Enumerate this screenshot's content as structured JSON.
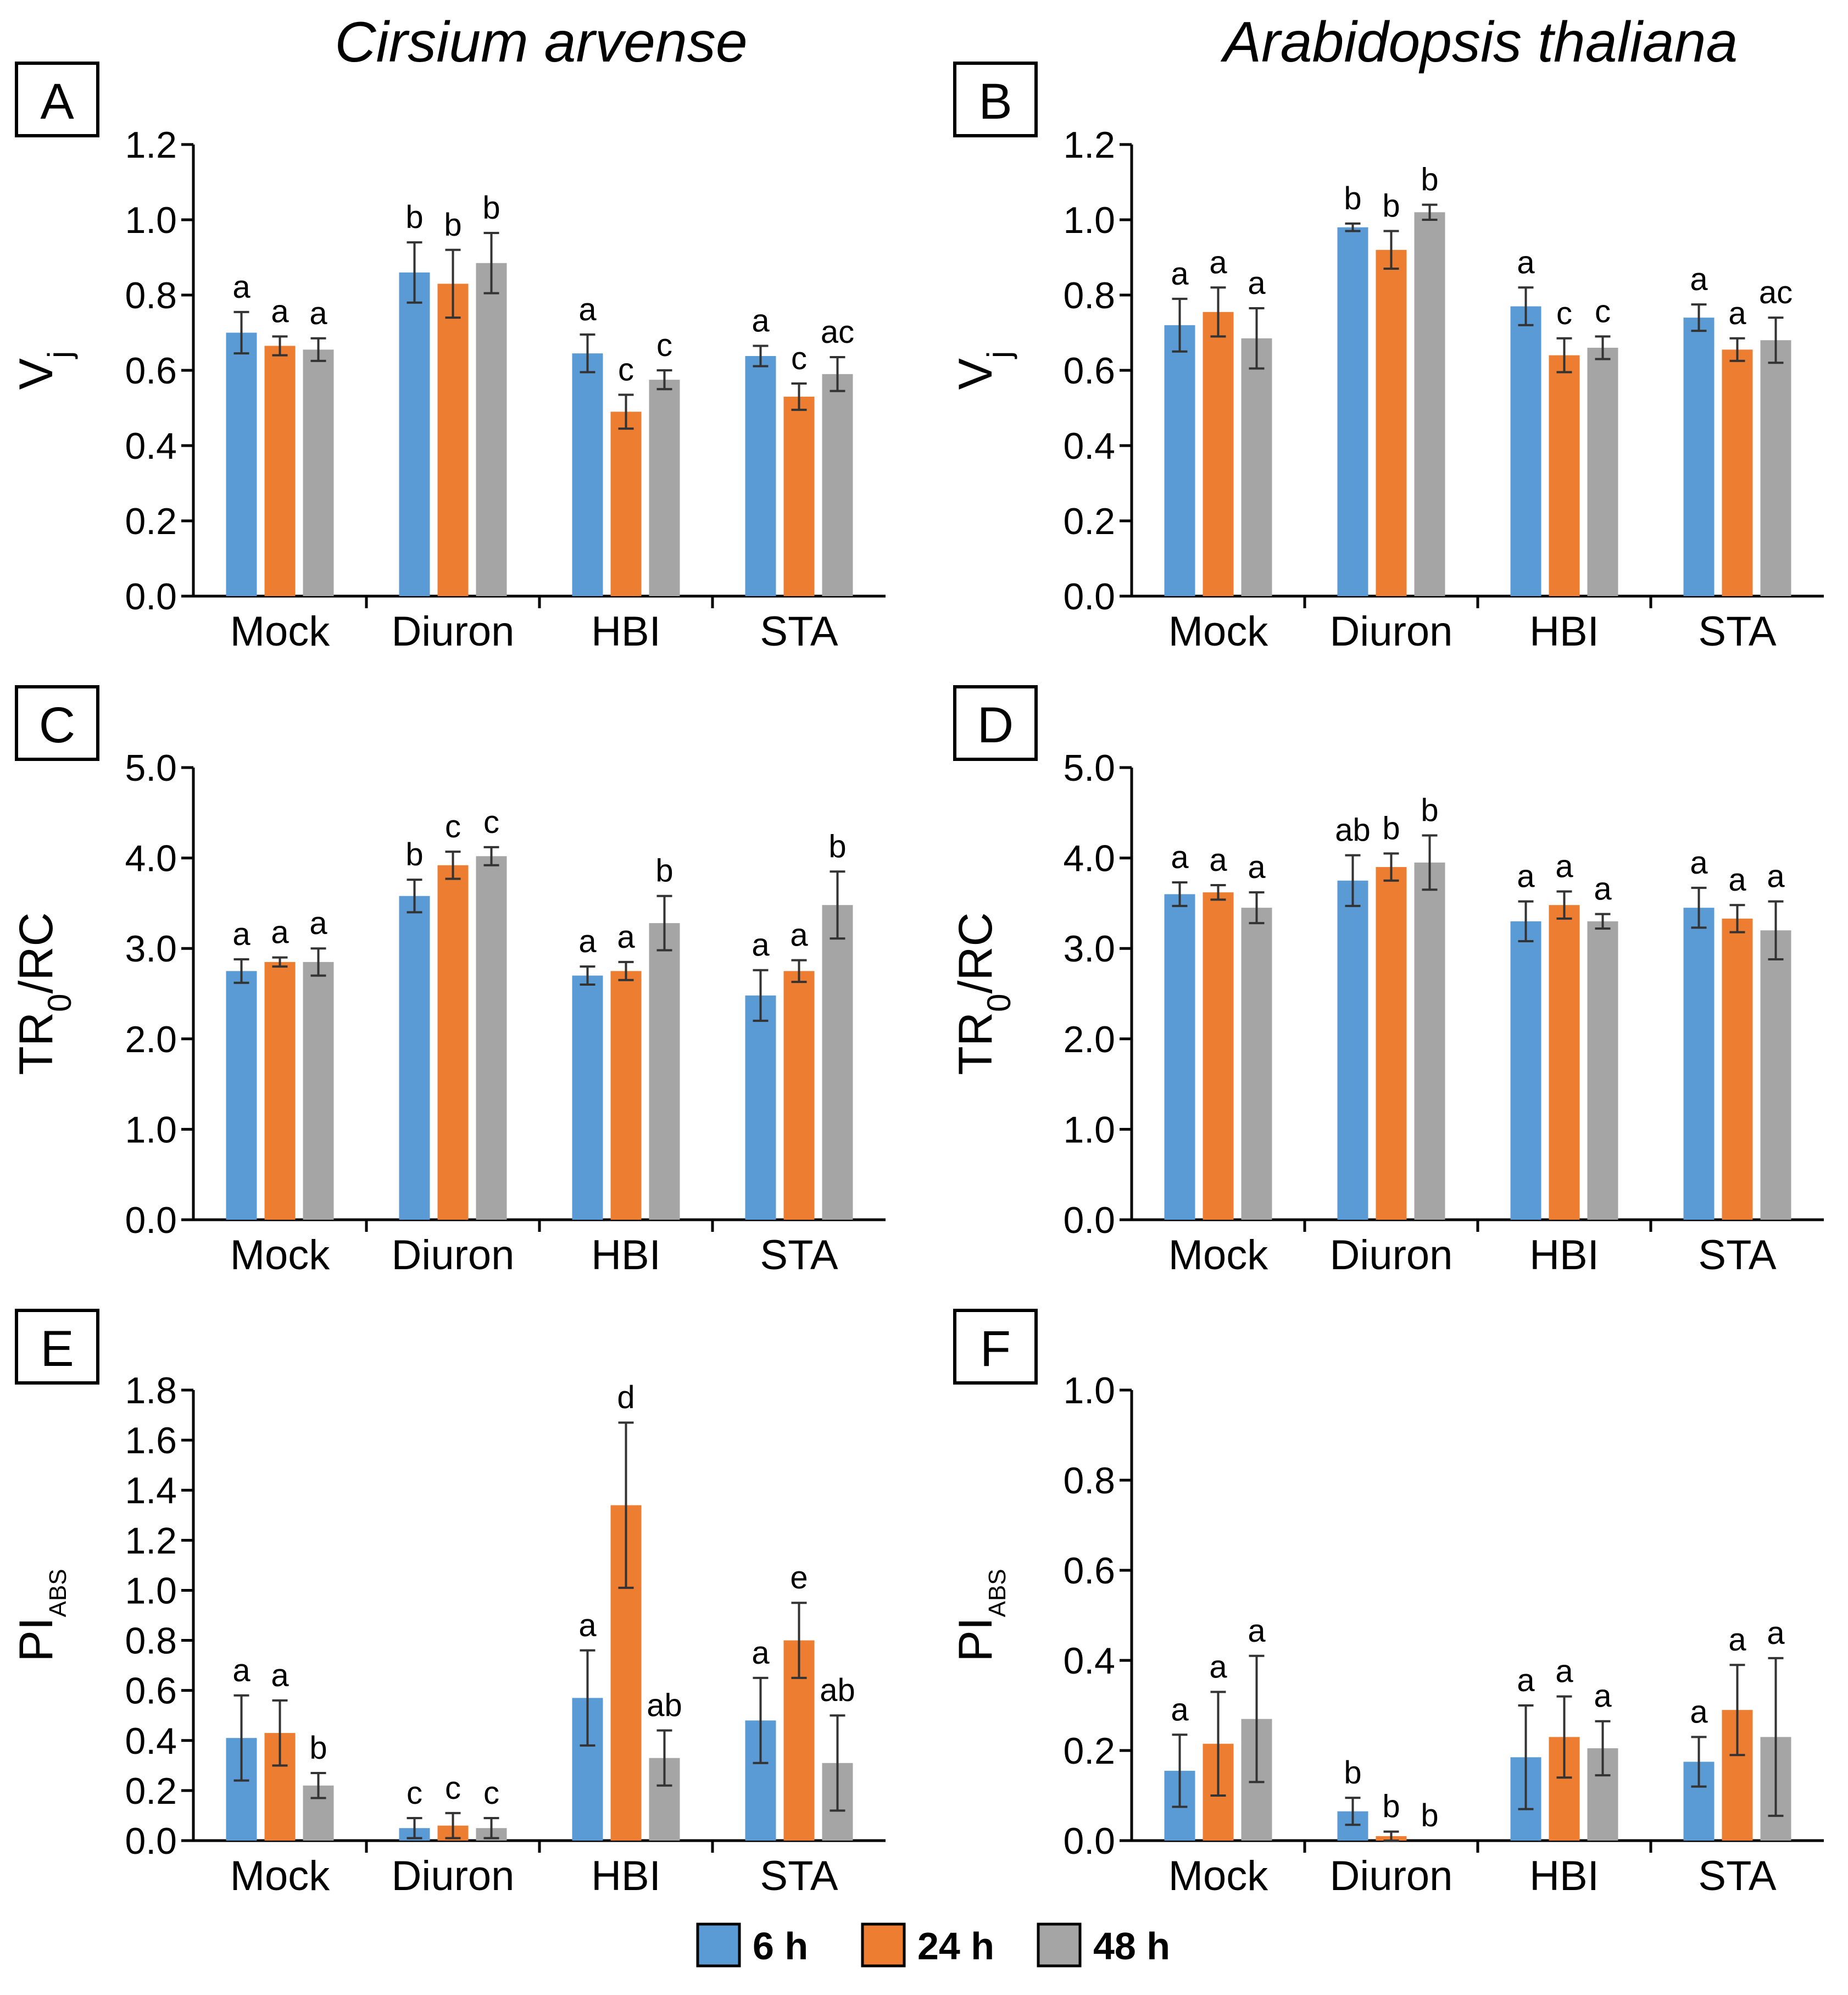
{
  "figure": {
    "column_titles": [
      "Cirsium arvense",
      "Arabidopsis thaliana"
    ]
  },
  "legend": {
    "entries": [
      {
        "label": "6 h",
        "color": "#5b9bd5"
      },
      {
        "label": "24 h",
        "color": "#ed7d31"
      },
      {
        "label": "48 h",
        "color": "#a5a5a5"
      }
    ]
  },
  "colors": {
    "series": [
      "#5b9bd5",
      "#ed7d31",
      "#a5a5a5"
    ],
    "axis": "#000000",
    "error": "#333333"
  },
  "chart_data": [
    {
      "panel": "A",
      "type": "bar",
      "title": "Cirsium arvense",
      "ylabel": "V",
      "ylabel_sub": "j",
      "ylim": [
        0,
        1.2
      ],
      "tick_step": 0.2,
      "decimals": 1,
      "categories": [
        "Mock",
        "Diuron",
        "HBI",
        "STA"
      ],
      "series": [
        {
          "name": "6 h",
          "values": [
            0.7,
            0.86,
            0.645,
            0.638
          ],
          "errors": [
            0.055,
            0.08,
            0.05,
            0.027
          ],
          "letters": [
            "a",
            "b",
            "a",
            "a"
          ]
        },
        {
          "name": "24 h",
          "values": [
            0.665,
            0.83,
            0.49,
            0.53
          ],
          "errors": [
            0.025,
            0.09,
            0.045,
            0.035
          ],
          "letters": [
            "a",
            "b",
            "c",
            "c"
          ]
        },
        {
          "name": "48 h",
          "values": [
            0.655,
            0.885,
            0.575,
            0.59
          ],
          "errors": [
            0.03,
            0.08,
            0.025,
            0.045
          ],
          "letters": [
            "a",
            "b",
            "c",
            "ac"
          ]
        }
      ]
    },
    {
      "panel": "B",
      "type": "bar",
      "title": "Arabidopsis thaliana",
      "ylabel": "V",
      "ylabel_sub": "j",
      "ylim": [
        0,
        1.2
      ],
      "tick_step": 0.2,
      "decimals": 1,
      "categories": [
        "Mock",
        "Diuron",
        "HBI",
        "STA"
      ],
      "series": [
        {
          "name": "6 h",
          "values": [
            0.72,
            0.98,
            0.77,
            0.74
          ],
          "errors": [
            0.07,
            0.01,
            0.05,
            0.035
          ],
          "letters": [
            "a",
            "b",
            "a",
            "a"
          ]
        },
        {
          "name": "24 h",
          "values": [
            0.755,
            0.92,
            0.64,
            0.655
          ],
          "errors": [
            0.065,
            0.05,
            0.045,
            0.03
          ],
          "letters": [
            "a",
            "b",
            "c",
            "a"
          ]
        },
        {
          "name": "48 h",
          "values": [
            0.685,
            1.02,
            0.66,
            0.68
          ],
          "errors": [
            0.08,
            0.02,
            0.03,
            0.06
          ],
          "letters": [
            "a",
            "b",
            "c",
            "ac"
          ]
        }
      ]
    },
    {
      "panel": "C",
      "type": "bar",
      "ylabel": "TR",
      "ylabel_sub": "0",
      "ylabel_after": "/RC",
      "ylim": [
        0,
        5.0
      ],
      "tick_step": 1.0,
      "decimals": 1,
      "categories": [
        "Mock",
        "Diuron",
        "HBI",
        "STA"
      ],
      "series": [
        {
          "name": "6 h",
          "values": [
            2.75,
            3.58,
            2.7,
            2.48
          ],
          "errors": [
            0.13,
            0.18,
            0.1,
            0.28
          ],
          "letters": [
            "a",
            "b",
            "a",
            "a"
          ]
        },
        {
          "name": "24 h",
          "values": [
            2.85,
            3.92,
            2.75,
            2.75
          ],
          "errors": [
            0.05,
            0.15,
            0.1,
            0.12
          ],
          "letters": [
            "a",
            "c",
            "a",
            "a"
          ]
        },
        {
          "name": "48 h",
          "values": [
            2.85,
            4.02,
            3.28,
            3.48
          ],
          "errors": [
            0.15,
            0.1,
            0.3,
            0.37
          ],
          "letters": [
            "a",
            "c",
            "b",
            "b"
          ]
        }
      ]
    },
    {
      "panel": "D",
      "type": "bar",
      "ylabel": "TR",
      "ylabel_sub": "0",
      "ylabel_after": "/RC",
      "ylim": [
        0,
        5.0
      ],
      "tick_step": 1.0,
      "decimals": 1,
      "categories": [
        "Mock",
        "Diuron",
        "HBI",
        "STA"
      ],
      "series": [
        {
          "name": "6 h",
          "values": [
            3.6,
            3.75,
            3.3,
            3.45
          ],
          "errors": [
            0.13,
            0.28,
            0.22,
            0.22
          ],
          "letters": [
            "a",
            "ab",
            "a",
            "a"
          ]
        },
        {
          "name": "24 h",
          "values": [
            3.62,
            3.9,
            3.48,
            3.33
          ],
          "errors": [
            0.08,
            0.15,
            0.15,
            0.15
          ],
          "letters": [
            "a",
            "b",
            "a",
            "a"
          ]
        },
        {
          "name": "48 h",
          "values": [
            3.45,
            3.95,
            3.3,
            3.2
          ],
          "errors": [
            0.17,
            0.3,
            0.08,
            0.32
          ],
          "letters": [
            "a",
            "b",
            "a",
            "a"
          ]
        }
      ]
    },
    {
      "panel": "E",
      "type": "bar",
      "ylabel": "PI",
      "ylabel_sub": "ABS",
      "ylim": [
        0,
        1.8
      ],
      "tick_step": 0.2,
      "decimals": 1,
      "categories": [
        "Mock",
        "Diuron",
        "HBI",
        "STA"
      ],
      "series": [
        {
          "name": "6 h",
          "values": [
            0.41,
            0.05,
            0.57,
            0.48
          ],
          "errors": [
            0.17,
            0.04,
            0.19,
            0.17
          ],
          "letters": [
            "a",
            "c",
            "a",
            "a"
          ]
        },
        {
          "name": "24 h",
          "values": [
            0.43,
            0.06,
            1.34,
            0.8
          ],
          "errors": [
            0.13,
            0.05,
            0.33,
            0.15
          ],
          "letters": [
            "a",
            "c",
            "d",
            "e"
          ]
        },
        {
          "name": "48 h",
          "values": [
            0.22,
            0.05,
            0.33,
            0.31
          ],
          "errors": [
            0.05,
            0.04,
            0.11,
            0.19
          ],
          "letters": [
            "b",
            "c",
            "ab",
            "ab"
          ]
        }
      ]
    },
    {
      "panel": "F",
      "type": "bar",
      "ylabel": "PI",
      "ylabel_sub": "ABS",
      "ylim": [
        0,
        1.0
      ],
      "tick_step": 0.2,
      "decimals": 1,
      "categories": [
        "Mock",
        "Diuron",
        "HBI",
        "STA"
      ],
      "series": [
        {
          "name": "6 h",
          "values": [
            0.155,
            0.065,
            0.185,
            0.175
          ],
          "errors": [
            0.08,
            0.03,
            0.115,
            0.055
          ],
          "letters": [
            "a",
            "b",
            "a",
            "a"
          ]
        },
        {
          "name": "24 h",
          "values": [
            0.215,
            0.01,
            0.23,
            0.29
          ],
          "errors": [
            0.115,
            0.01,
            0.09,
            0.1
          ],
          "letters": [
            "a",
            "b",
            "a",
            "a"
          ]
        },
        {
          "name": "48 h",
          "values": [
            0.27,
            0.0,
            0.205,
            0.23
          ],
          "errors": [
            0.14,
            0.0,
            0.06,
            0.175
          ],
          "letters": [
            "a",
            "b",
            "a",
            "a"
          ]
        }
      ]
    }
  ]
}
